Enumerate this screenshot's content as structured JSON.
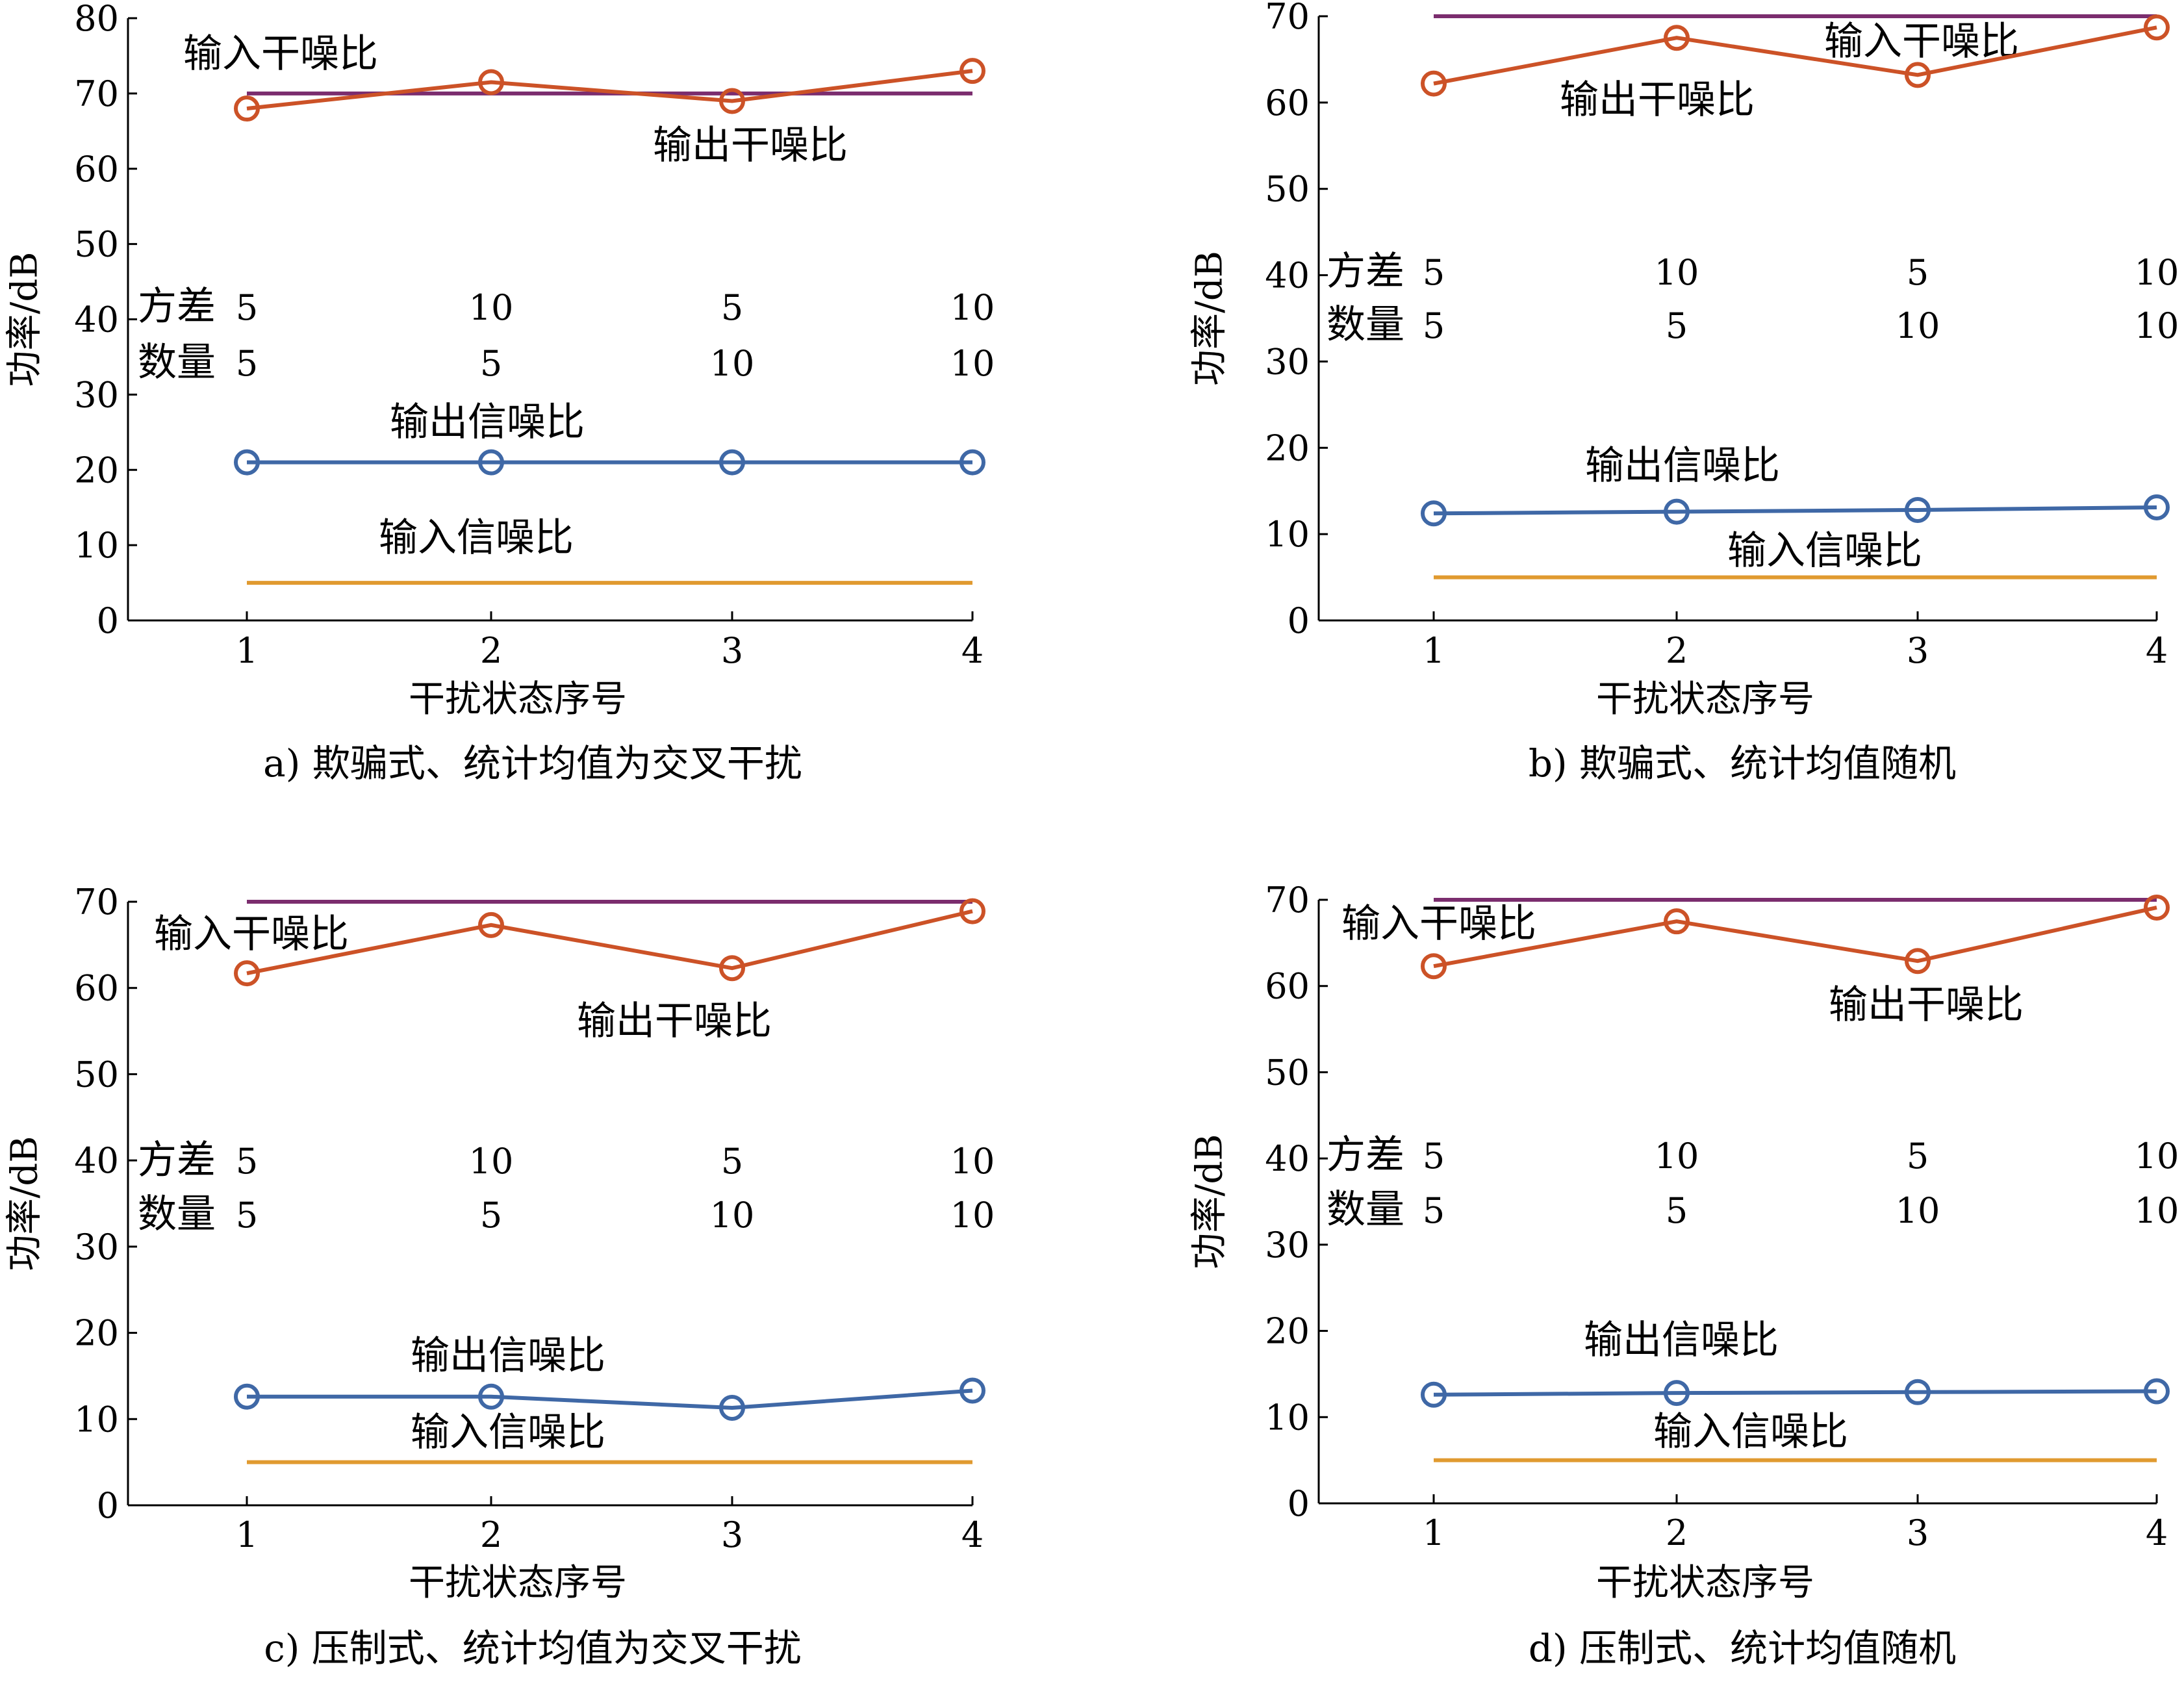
{
  "colors": {
    "input_sjr": "#7b2d6e",
    "output_sjr": "#cc5227",
    "output_snr": "#3f68a6",
    "input_snr": "#e09a30",
    "axis": "#000000"
  },
  "annotation_labels": {
    "variance": "方差",
    "count": "数量"
  },
  "chart_data": [
    {
      "type": "line",
      "caption": "a) 欺骗式、统计均值为交叉干扰",
      "xlabel": "干扰状态序号",
      "ylabel": "功率/dB",
      "x": [
        1,
        2,
        3,
        4
      ],
      "xticks": [
        "1",
        "2",
        "3",
        "4"
      ],
      "ylim": [
        0,
        80
      ],
      "yticks": [
        "0",
        "10",
        "20",
        "30",
        "40",
        "50",
        "60",
        "70",
        "80"
      ],
      "grid": false,
      "variance": [
        "5",
        "10",
        "5",
        "10"
      ],
      "count": [
        "5",
        "5",
        "10",
        "10"
      ],
      "series": [
        {
          "name": "输入干噪比",
          "key": "input_sjr",
          "values": [
            70,
            70,
            70,
            70
          ],
          "markers": false
        },
        {
          "name": "输出干噪比",
          "key": "output_sjr",
          "values": [
            68,
            71.5,
            69,
            73
          ],
          "markers": true
        },
        {
          "name": "输出信噪比",
          "key": "output_snr",
          "values": [
            21,
            21,
            21,
            21
          ],
          "markers": true
        },
        {
          "name": "输入信噪比",
          "key": "input_snr",
          "values": [
            5,
            5,
            5,
            5
          ],
          "markers": false
        }
      ]
    },
    {
      "type": "line",
      "caption": "b) 欺骗式、统计均值随机",
      "xlabel": "干扰状态序号",
      "ylabel": "功率/dB",
      "x": [
        1,
        2,
        3,
        4
      ],
      "xticks": [
        "1",
        "2",
        "3",
        "4"
      ],
      "ylim": [
        0,
        70
      ],
      "yticks": [
        "0",
        "10",
        "20",
        "30",
        "40",
        "50",
        "60",
        "70"
      ],
      "grid": false,
      "variance": [
        "5",
        "10",
        "5",
        "10"
      ],
      "count": [
        "5",
        "5",
        "10",
        "10"
      ],
      "series": [
        {
          "name": "输入干噪比",
          "key": "input_sjr",
          "values": [
            70,
            70,
            70,
            70
          ],
          "markers": false
        },
        {
          "name": "输出干噪比",
          "key": "output_sjr",
          "values": [
            62.2,
            67.5,
            63.2,
            68.7
          ],
          "markers": true
        },
        {
          "name": "输出信噪比",
          "key": "output_snr",
          "values": [
            12.4,
            12.6,
            12.8,
            13.1
          ],
          "markers": true
        },
        {
          "name": "输入信噪比",
          "key": "input_snr",
          "values": [
            5,
            5,
            5,
            5
          ],
          "markers": false
        }
      ]
    },
    {
      "type": "line",
      "caption": "c) 压制式、统计均值为交叉干扰",
      "xlabel": "干扰状态序号",
      "ylabel": "功率/dB",
      "x": [
        1,
        2,
        3,
        4
      ],
      "xticks": [
        "1",
        "2",
        "3",
        "4"
      ],
      "ylim": [
        0,
        70
      ],
      "yticks": [
        "0",
        "10",
        "20",
        "30",
        "40",
        "50",
        "60",
        "70"
      ],
      "grid": false,
      "variance": [
        "5",
        "10",
        "5",
        "10"
      ],
      "count": [
        "5",
        "5",
        "10",
        "10"
      ],
      "series": [
        {
          "name": "输入干噪比",
          "key": "input_sjr",
          "values": [
            70,
            70,
            70,
            70
          ],
          "markers": false
        },
        {
          "name": "输出干噪比",
          "key": "output_sjr",
          "values": [
            61.7,
            67.3,
            62.3,
            68.9
          ],
          "markers": true
        },
        {
          "name": "输出信噪比",
          "key": "output_snr",
          "values": [
            12.6,
            12.6,
            11.3,
            13.3
          ],
          "markers": true
        },
        {
          "name": "输入信噪比",
          "key": "input_snr",
          "values": [
            5,
            5,
            5,
            5
          ],
          "markers": false
        }
      ]
    },
    {
      "type": "line",
      "caption": "d) 压制式、统计均值随机",
      "xlabel": "干扰状态序号",
      "ylabel": "功率/dB",
      "x": [
        1,
        2,
        3,
        4
      ],
      "xticks": [
        "1",
        "2",
        "3",
        "4"
      ],
      "ylim": [
        0,
        70
      ],
      "yticks": [
        "0",
        "10",
        "20",
        "30",
        "40",
        "50",
        "60",
        "70"
      ],
      "grid": false,
      "variance": [
        "5",
        "10",
        "5",
        "10"
      ],
      "count": [
        "5",
        "5",
        "10",
        "10"
      ],
      "series": [
        {
          "name": "输入干噪比",
          "key": "input_sjr",
          "values": [
            70,
            70,
            70,
            70
          ],
          "markers": false
        },
        {
          "name": "输出干噪比",
          "key": "output_sjr",
          "values": [
            62.3,
            67.5,
            62.9,
            69.1
          ],
          "markers": true
        },
        {
          "name": "输出信噪比",
          "key": "output_snr",
          "values": [
            12.6,
            12.8,
            12.9,
            13.0
          ],
          "markers": true
        },
        {
          "name": "输入信噪比",
          "key": "input_snr",
          "values": [
            5,
            5,
            5,
            5
          ],
          "markers": false
        }
      ]
    }
  ]
}
